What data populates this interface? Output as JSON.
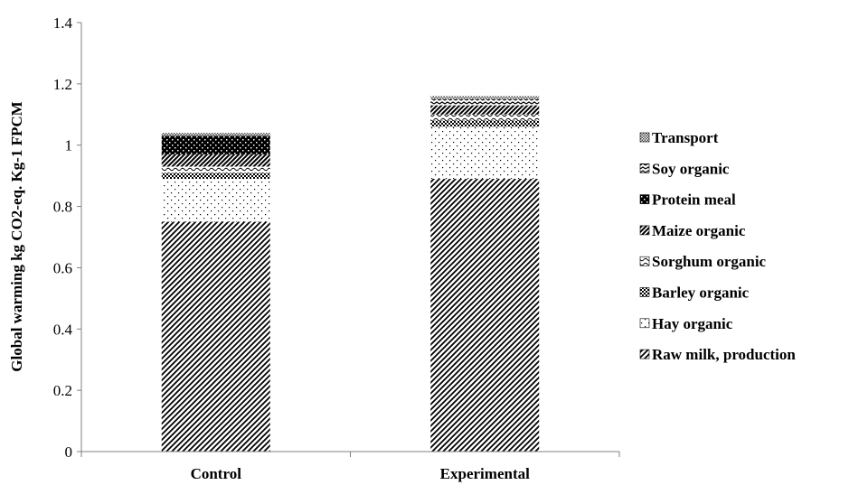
{
  "chart_data": {
    "type": "bar",
    "stacked": true,
    "title": "",
    "xlabel": "",
    "ylabel": "Global warming kg CO2-eq. Kg-1 FPCM",
    "ylim": [
      0,
      1.4
    ],
    "yticks": [
      0,
      0.2,
      0.4,
      0.6,
      0.8,
      1,
      1.2,
      1.4
    ],
    "ytick_labels": [
      "0",
      "0.2",
      "0.4",
      "0.6",
      "0.8",
      "1",
      "1.2",
      "1.4"
    ],
    "grid": false,
    "legend_position": "right",
    "categories": [
      "Control",
      "Experimental"
    ],
    "series": [
      {
        "name": "Raw milk, production",
        "values": [
          0.75,
          0.89
        ],
        "pattern": "diag-dense"
      },
      {
        "name": "Hay organic",
        "values": [
          0.14,
          0.17
        ],
        "pattern": "dots-sparse"
      },
      {
        "name": "Barley organic",
        "values": [
          0.02,
          0.02
        ],
        "pattern": "dots-dense"
      },
      {
        "name": "Sorghum organic",
        "values": [
          0.02,
          0.02
        ],
        "pattern": "waves"
      },
      {
        "name": "Maize organic",
        "values": [
          0.04,
          0.03
        ],
        "pattern": "diag-wide"
      },
      {
        "name": "Protein meal",
        "values": [
          0.06,
          0.0
        ],
        "pattern": "checker"
      },
      {
        "name": "Soy organic",
        "values": [
          0.0,
          0.02
        ],
        "pattern": "zigzag"
      },
      {
        "name": "Transport",
        "values": [
          0.01,
          0.01
        ],
        "pattern": "grid-fine"
      }
    ]
  }
}
